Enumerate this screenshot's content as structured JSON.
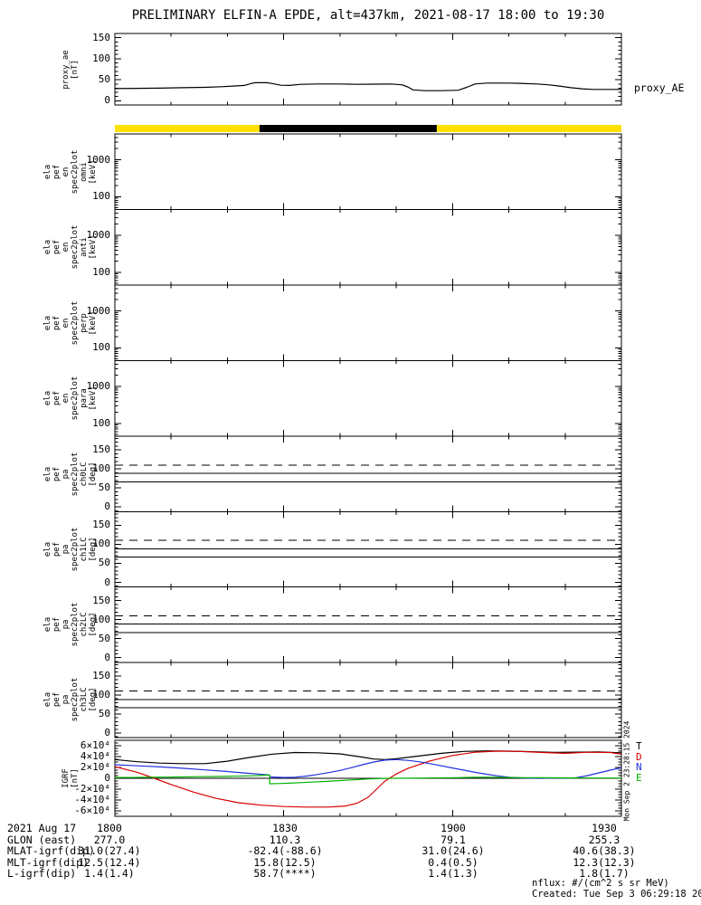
{
  "title": "PRELIMINARY ELFIN-A EPDE, alt=437km, 2021-08-17 18:00 to 19:30",
  "side_timestamp": "Mon Sep  2 23:28:15 2024",
  "footnotes": {
    "units": "nflux: #/(cm^2 s sr MeV)",
    "created": "Created: Tue Sep  3 06:29:18 2024"
  },
  "colors": {
    "black": "#000000",
    "yellow": "#ffe100",
    "red": "#d80000",
    "blue": "#2230dd",
    "green": "#00b400"
  },
  "xaxis": {
    "duration_min": 90,
    "major_ticks_min": [
      0,
      30,
      60,
      90
    ],
    "minor_ticks_min": [
      10,
      20,
      40,
      50,
      70,
      80
    ],
    "labels": [
      "1800",
      "1830",
      "1900",
      "1930"
    ]
  },
  "bottom_rows": [
    {
      "label": "2021 Aug 17",
      "values": [
        "1800",
        "1830",
        "1900",
        "1930"
      ]
    },
    {
      "label": "GLON (east)",
      "values": [
        "277.0",
        "110.3",
        "79.1",
        "255.3"
      ]
    },
    {
      "label": "MLAT-igrf(dip)",
      "values": [
        "31.0(27.4)",
        "-82.4(-88.6)",
        "31.0(24.6)",
        "40.6(38.3)"
      ]
    },
    {
      "label": "MLT-igrf(dip)",
      "values": [
        "12.5(12.4)",
        "15.8(12.5)",
        "0.4(0.5)",
        "12.3(12.3)"
      ]
    },
    {
      "label": "L-igrf(dip)",
      "values": [
        "1.4(1.4)",
        "58.7(****)",
        "1.4(1.3)",
        "1.8(1.7)"
      ]
    }
  ],
  "chart_data": [
    {
      "id": "proxy_ae",
      "type": "line",
      "ylabel_lines": [
        "proxy_ae",
        "[nT]"
      ],
      "right_label": "proxy_AE",
      "ylim": [
        -10,
        160
      ],
      "yminor_step": 10,
      "yticks": [
        {
          "v": 0,
          "label": "0"
        },
        {
          "v": 50,
          "label": "50"
        },
        {
          "v": 100,
          "label": "100"
        },
        {
          "v": 150,
          "label": "150"
        }
      ],
      "series": [
        {
          "name": "proxy_AE",
          "color": "#000000",
          "x": [
            0,
            4,
            8,
            12,
            16,
            19,
            21,
            23,
            24.5,
            25,
            27,
            28,
            29.5,
            31,
            33,
            36,
            40,
            43,
            46,
            49,
            51,
            52,
            53,
            55,
            58,
            61,
            62.5,
            64,
            66,
            70,
            72,
            75,
            77,
            79,
            81,
            83,
            85,
            90
          ],
          "y": [
            29,
            29.5,
            30,
            31,
            32,
            33.5,
            35,
            36.5,
            42,
            43,
            43,
            41,
            37,
            36.5,
            39,
            40,
            40,
            39,
            39.5,
            40,
            38,
            33,
            26,
            24,
            24,
            25,
            32,
            40,
            42,
            42,
            41.5,
            40,
            38,
            35,
            31,
            28.5,
            27,
            27
          ]
        }
      ]
    },
    {
      "id": "mode_bar",
      "type": "bar-strip",
      "segments": [
        {
          "color": "#ffe100",
          "t0": 0,
          "t1": 25.7
        },
        {
          "color": "#000000",
          "t0": 25.7,
          "t1": 57.2
        },
        {
          "color": "#ffe100",
          "t0": 57.2,
          "t1": 90
        }
      ]
    },
    {
      "id": "spec_omni",
      "type": "spectrogram",
      "empty": true,
      "ylabel_lines": [
        "ela",
        "pef",
        "en",
        "spec2plot",
        "omni",
        "[keV]"
      ],
      "ylog": true,
      "ylim": [
        45,
        5000
      ],
      "yticks": [
        {
          "v": 100,
          "label": "100"
        },
        {
          "v": 1000,
          "label": "1000"
        }
      ]
    },
    {
      "id": "spec_anti",
      "type": "spectrogram",
      "empty": true,
      "ylabel_lines": [
        "ela",
        "pef",
        "en",
        "spec2plot",
        "anti",
        "[keV]"
      ],
      "ylog": true,
      "ylim": [
        45,
        5000
      ],
      "yticks": [
        {
          "v": 100,
          "label": "100"
        },
        {
          "v": 1000,
          "label": "1000"
        }
      ]
    },
    {
      "id": "spec_perp",
      "type": "spectrogram",
      "empty": true,
      "ylabel_lines": [
        "ela",
        "pef",
        "en",
        "spec2plot",
        "perp",
        "[keV]"
      ],
      "ylog": true,
      "ylim": [
        45,
        5000
      ],
      "yticks": [
        {
          "v": 100,
          "label": "100"
        },
        {
          "v": 1000,
          "label": "1000"
        }
      ]
    },
    {
      "id": "spec_para",
      "type": "spectrogram",
      "empty": true,
      "ylabel_lines": [
        "ela",
        "pef",
        "en",
        "spec2plot",
        "para",
        "[keV]"
      ],
      "ylog": true,
      "ylim": [
        45,
        5000
      ],
      "yticks": [
        {
          "v": 100,
          "label": "100"
        },
        {
          "v": 1000,
          "label": "1000"
        }
      ]
    },
    {
      "id": "pa_ch0",
      "type": "line",
      "ylabel_lines": [
        "ela",
        "pef",
        "pa",
        "spec2plot",
        "ch0LC",
        "[deg]"
      ],
      "ylim": [
        -12,
        186
      ],
      "yminor_step": 10,
      "yticks": [
        {
          "v": 0,
          "label": "0"
        },
        {
          "v": 50,
          "label": "50"
        },
        {
          "v": 100,
          "label": "100"
        },
        {
          "v": 150,
          "label": "150"
        }
      ],
      "hlines": [
        {
          "v": 110,
          "style": "dashed"
        },
        {
          "v": 88,
          "style": "solid"
        },
        {
          "v": 66,
          "style": "solid"
        }
      ],
      "series": []
    },
    {
      "id": "pa_ch1",
      "type": "line",
      "ylabel_lines": [
        "ela",
        "pef",
        "pa",
        "spec2plot",
        "ch1LC",
        "[deg]"
      ],
      "ylim": [
        -12,
        186
      ],
      "yminor_step": 10,
      "yticks": [
        {
          "v": 0,
          "label": "0"
        },
        {
          "v": 50,
          "label": "50"
        },
        {
          "v": 100,
          "label": "100"
        },
        {
          "v": 150,
          "label": "150"
        }
      ],
      "hlines": [
        {
          "v": 110,
          "style": "dashed"
        },
        {
          "v": 88,
          "style": "solid"
        },
        {
          "v": 66,
          "style": "solid"
        }
      ],
      "series": []
    },
    {
      "id": "pa_ch2",
      "type": "line",
      "ylabel_lines": [
        "ela",
        "pef",
        "pa",
        "spec2plot",
        "ch2LC",
        "[deg]"
      ],
      "ylim": [
        -12,
        186
      ],
      "yminor_step": 10,
      "yticks": [
        {
          "v": 0,
          "label": "0"
        },
        {
          "v": 50,
          "label": "50"
        },
        {
          "v": 100,
          "label": "100"
        },
        {
          "v": 150,
          "label": "150"
        }
      ],
      "hlines": [
        {
          "v": 110,
          "style": "dashed"
        },
        {
          "v": 88,
          "style": "solid"
        },
        {
          "v": 66,
          "style": "solid"
        }
      ],
      "series": []
    },
    {
      "id": "pa_ch3",
      "type": "line",
      "ylabel_lines": [
        "ela",
        "pef",
        "pa",
        "spec2plot",
        "ch3LC",
        "[deg]"
      ],
      "ylim": [
        -12,
        186
      ],
      "yminor_step": 10,
      "yticks": [
        {
          "v": 0,
          "label": "0"
        },
        {
          "v": 50,
          "label": "50"
        },
        {
          "v": 100,
          "label": "100"
        },
        {
          "v": 150,
          "label": "150"
        }
      ],
      "hlines": [
        {
          "v": 110,
          "style": "dashed"
        },
        {
          "v": 88,
          "style": "solid"
        },
        {
          "v": 66,
          "style": "solid"
        }
      ],
      "series": []
    },
    {
      "id": "igrf",
      "type": "line",
      "ylabel_lines": [
        "IGRF",
        "[nT]"
      ],
      "ylim": [
        -70000,
        70000
      ],
      "yminor_step": 5000,
      "yticks": [
        {
          "v": 60000,
          "label": "6×10⁴"
        },
        {
          "v": 40000,
          "label": "4×10⁴"
        },
        {
          "v": 20000,
          "label": "2×10⁴"
        },
        {
          "v": 0,
          "label": "0"
        },
        {
          "v": -20000,
          "label": "-2×10⁴"
        },
        {
          "v": -40000,
          "label": "-4×10⁴"
        },
        {
          "v": -60000,
          "label": "-6×10⁴"
        }
      ],
      "hlines": [
        {
          "v": 0,
          "style": "solid"
        }
      ],
      "legend": [
        {
          "label": "T",
          "color": "#000000"
        },
        {
          "label": "D",
          "color": "#d80000"
        },
        {
          "label": "N",
          "color": "#2230dd"
        },
        {
          "label": "E",
          "color": "#00b400"
        }
      ],
      "series": [
        {
          "name": "T",
          "color": "#000000",
          "x": [
            0,
            4,
            8,
            12,
            16,
            20,
            24,
            28,
            32,
            36,
            40,
            44,
            46,
            48,
            50,
            54,
            58,
            62,
            66,
            70,
            74,
            78,
            82,
            86,
            90
          ],
          "y": [
            34500,
            30500,
            28000,
            27000,
            27000,
            31500,
            38500,
            44500,
            47500,
            47000,
            45000,
            39000,
            35500,
            34500,
            36000,
            41000,
            46000,
            49500,
            50500,
            50000,
            49000,
            47800,
            48200,
            48500,
            47000
          ]
        },
        {
          "name": "D",
          "color": "#d80000",
          "x": [
            0,
            4,
            7,
            10,
            14,
            18,
            22,
            26,
            30,
            34,
            38,
            41,
            43,
            45,
            47,
            48,
            50,
            52,
            56,
            60,
            64,
            68,
            72,
            76,
            80,
            84,
            88,
            90
          ],
          "y": [
            21500,
            11000,
            0,
            -11500,
            -25500,
            -37000,
            -45000,
            -49500,
            -52000,
            -53000,
            -53000,
            -51000,
            -46000,
            -35000,
            -15000,
            -5000,
            8000,
            18000,
            32000,
            42000,
            48000,
            50000,
            49500,
            47500,
            46000,
            48000,
            47500,
            44500
          ]
        },
        {
          "name": "N",
          "color": "#2230dd",
          "x": [
            0,
            4,
            8,
            12,
            16,
            20,
            24,
            27.5,
            27.5,
            30,
            32,
            34,
            36,
            38,
            40,
            42,
            44,
            46,
            48,
            50,
            52,
            54,
            56,
            58,
            60,
            62,
            64,
            66,
            68,
            70,
            72,
            74,
            76,
            78,
            80,
            82,
            84,
            86,
            88,
            90
          ],
          "y": [
            25000,
            23000,
            21000,
            18500,
            15500,
            12500,
            9000,
            6200,
            2500,
            1500,
            2000,
            4000,
            7000,
            10500,
            14500,
            19500,
            25000,
            30000,
            33500,
            34500,
            33000,
            30500,
            27000,
            23000,
            19000,
            15000,
            11000,
            7500,
            4500,
            2000,
            800,
            200,
            0,
            500,
            200,
            1000,
            5000,
            10000,
            15000,
            19500
          ]
        },
        {
          "name": "E",
          "color": "#00b400",
          "x": [
            0,
            3,
            6,
            9,
            12,
            15,
            18,
            21,
            24,
            26,
            27.5,
            27.5,
            29,
            31,
            33,
            35,
            37,
            39,
            41,
            43,
            45,
            47,
            49,
            52,
            55,
            58,
            61,
            64,
            67,
            70,
            73,
            76,
            79,
            82,
            85,
            88,
            90
          ],
          "y": [
            1500,
            1500,
            2000,
            2200,
            2500,
            3000,
            3300,
            3800,
            4500,
            5200,
            6000,
            -10000,
            -9700,
            -9000,
            -8000,
            -7000,
            -6000,
            -4800,
            -3600,
            -2500,
            -1200,
            -500,
            0,
            200,
            500,
            800,
            1200,
            1800,
            2000,
            1500,
            1200,
            1000,
            800,
            600,
            500,
            500,
            500
          ]
        }
      ]
    }
  ]
}
